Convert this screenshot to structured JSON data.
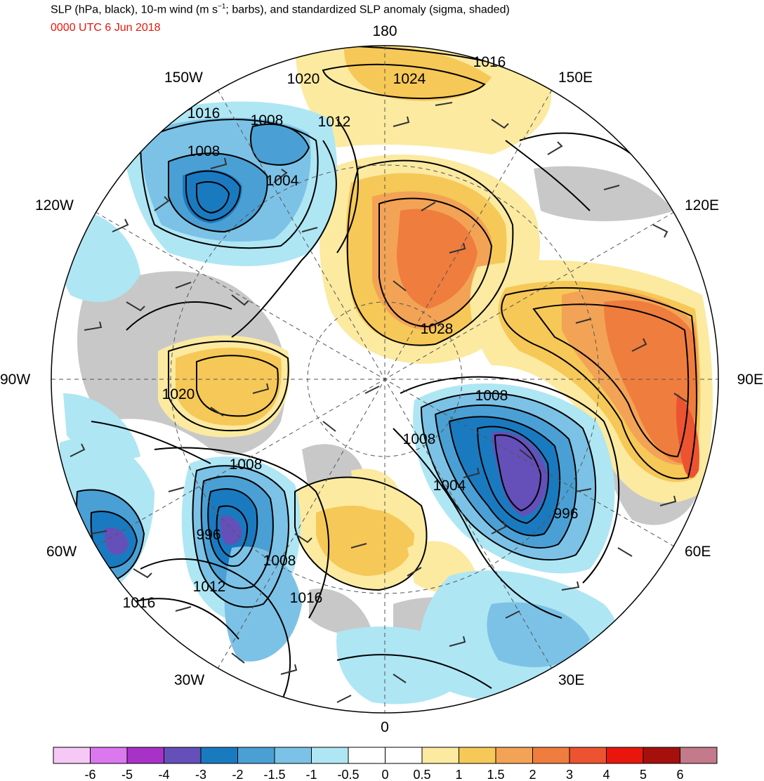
{
  "header": {
    "title_pre": "SLP (hPa, black), 10-m wind (m s",
    "title_sup": "−1",
    "title_post": "; barbs), and standardized SLP anomaly (sigma, shaded)",
    "valid_time": "0000 UTC 6 Jun 2018"
  },
  "colors": {
    "time_text": "#e8160c",
    "land_neutral": "#c8c8c8",
    "contour": "#000000",
    "barb": "#333333"
  },
  "map": {
    "projection": "north polar stereographic",
    "longitude_labels": {
      "lon_0": "0",
      "lon_180": "180",
      "lon_90w": "90W",
      "lon_90e": "90E",
      "lon_150w": "150W",
      "lon_150e": "150E",
      "lon_120w": "120W",
      "lon_120e": "120E",
      "lon_60w": "60W",
      "lon_60e": "60E",
      "lon_30w": "30W",
      "lon_30e": "30E"
    },
    "contour_labels": [
      {
        "id": "c1020a",
        "text": "1020"
      },
      {
        "id": "c1024",
        "text": "1024"
      },
      {
        "id": "c1016a",
        "text": "1016"
      },
      {
        "id": "c1016b",
        "text": "1016"
      },
      {
        "id": "c1008a",
        "text": "1008"
      },
      {
        "id": "c1012a",
        "text": "1012"
      },
      {
        "id": "c1008b",
        "text": "1008"
      },
      {
        "id": "c1004a",
        "text": "1004"
      },
      {
        "id": "c1028",
        "text": "1028"
      },
      {
        "id": "c1020b",
        "text": "1020"
      },
      {
        "id": "c1008c",
        "text": "1008"
      },
      {
        "id": "c1008d",
        "text": "1008"
      },
      {
        "id": "c1008e",
        "text": "1008"
      },
      {
        "id": "c1004b",
        "text": "1004"
      },
      {
        "id": "c996a",
        "text": "996"
      },
      {
        "id": "c996b",
        "text": "996"
      },
      {
        "id": "c1008f",
        "text": "1008"
      },
      {
        "id": "c1012b",
        "text": "1012"
      },
      {
        "id": "c1016c",
        "text": "1016"
      },
      {
        "id": "c1016d",
        "text": "1016"
      }
    ],
    "pressure_centers": [
      {
        "id": "low-beaufort",
        "sigma": -3.2
      },
      {
        "id": "low-kara",
        "sigma": -4.0
      },
      {
        "id": "low-labrador",
        "sigma": -4.0
      },
      {
        "id": "low-newfoundland",
        "sigma": -4.0
      },
      {
        "id": "high-east-siberia",
        "sigma": 2.4
      },
      {
        "id": "high-central-siberia",
        "sigma": 2.4
      },
      {
        "id": "high-greenland",
        "sigma": 1.2
      }
    ]
  },
  "colorbar": {
    "colors": [
      "#f5c8f5",
      "#dc78ef",
      "#a832c8",
      "#6450b8",
      "#1a7ac0",
      "#4aa0d4",
      "#7cc2e6",
      "#aee6f4",
      "#ffffff",
      "#ffffff",
      "#fbeaa0",
      "#f6c857",
      "#f3a355",
      "#ef7d3e",
      "#ec5330",
      "#e8160c",
      "#a6100c",
      "#c37a8a"
    ],
    "labels": [
      "-6",
      "-5",
      "-4",
      "-3",
      "-2",
      "-1.5",
      "-1",
      "-0.5",
      "0",
      "0.5",
      "1",
      "1.5",
      "2",
      "3",
      "4",
      "5",
      "6"
    ]
  }
}
